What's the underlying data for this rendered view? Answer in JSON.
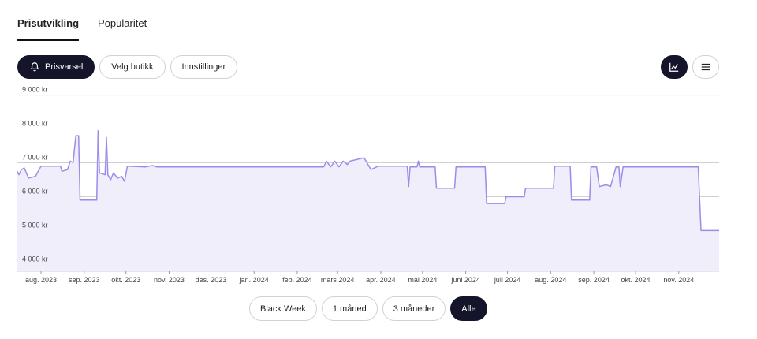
{
  "tabs": [
    {
      "label": "Prisutvikling",
      "active": true
    },
    {
      "label": "Popularitet",
      "active": false
    }
  ],
  "toolbar": {
    "alert_label": "Prisvarsel",
    "store_label": "Velg butikk",
    "settings_label": "Innstillinger"
  },
  "view": {
    "chart_icon": "line-chart-icon",
    "list_icon": "list-icon",
    "active": "chart"
  },
  "ranges": [
    {
      "label": "Black Week",
      "active": false
    },
    {
      "label": "1 måned",
      "active": false
    },
    {
      "label": "3 måneder",
      "active": false
    },
    {
      "label": "Alle",
      "active": true
    }
  ],
  "colors": {
    "line": "#9a8ce8",
    "fill": "#f1eefc",
    "dark": "#14142a",
    "grid": "#cfcfd6"
  },
  "chart_data": {
    "type": "line",
    "title": "",
    "xlabel": "",
    "ylabel": "",
    "ylim": [
      3800,
      9200
    ],
    "x_range": [
      "2023-07-15",
      "2024-11-30"
    ],
    "y_ticks": [
      {
        "value": 4000,
        "label": "4 000 kr"
      },
      {
        "value": 5000,
        "label": "5 000 kr"
      },
      {
        "value": 6000,
        "label": "6 000 kr"
      },
      {
        "value": 7000,
        "label": "7 000 kr"
      },
      {
        "value": 8000,
        "label": "8 000 kr"
      },
      {
        "value": 9000,
        "label": "9 000 kr"
      }
    ],
    "x_ticks": [
      {
        "date": "2023-08-01",
        "label": "aug. 2023"
      },
      {
        "date": "2023-09-01",
        "label": "sep. 2023"
      },
      {
        "date": "2023-10-01",
        "label": "okt. 2023"
      },
      {
        "date": "2023-11-01",
        "label": "nov. 2023"
      },
      {
        "date": "2023-12-01",
        "label": "des. 2023"
      },
      {
        "date": "2024-01-01",
        "label": "jan. 2024"
      },
      {
        "date": "2024-02-01",
        "label": "feb. 2024"
      },
      {
        "date": "2024-03-01",
        "label": "mars 2024"
      },
      {
        "date": "2024-04-01",
        "label": "apr. 2024"
      },
      {
        "date": "2024-05-01",
        "label": "mai 2024"
      },
      {
        "date": "2024-06-01",
        "label": "juni 2024"
      },
      {
        "date": "2024-07-01",
        "label": "juli 2024"
      },
      {
        "date": "2024-08-01",
        "label": "aug. 2024"
      },
      {
        "date": "2024-09-01",
        "label": "sep. 2024"
      },
      {
        "date": "2024-10-01",
        "label": "okt. 2024"
      },
      {
        "date": "2024-11-01",
        "label": "nov. 2024"
      }
    ],
    "grid": true,
    "series": [
      {
        "values": [
          [
            "2023-07-15",
            6750
          ],
          [
            "2023-07-16",
            6650
          ],
          [
            "2023-07-18",
            6800
          ],
          [
            "2023-07-20",
            6850
          ],
          [
            "2023-07-23",
            6550
          ],
          [
            "2023-07-28",
            6600
          ],
          [
            "2023-08-01",
            6900
          ],
          [
            "2023-08-15",
            6900
          ],
          [
            "2023-08-16",
            6750
          ],
          [
            "2023-08-20",
            6800
          ],
          [
            "2023-08-22",
            7050
          ],
          [
            "2023-08-24",
            7000
          ],
          [
            "2023-08-26",
            7800
          ],
          [
            "2023-08-28",
            7800
          ],
          [
            "2023-08-29",
            5900
          ],
          [
            "2023-09-10",
            5900
          ],
          [
            "2023-09-11",
            7950
          ],
          [
            "2023-09-12",
            6700
          ],
          [
            "2023-09-16",
            6650
          ],
          [
            "2023-09-17",
            7750
          ],
          [
            "2023-09-18",
            6650
          ],
          [
            "2023-09-20",
            6500
          ],
          [
            "2023-09-22",
            6700
          ],
          [
            "2023-09-25",
            6550
          ],
          [
            "2023-09-28",
            6600
          ],
          [
            "2023-09-30",
            6450
          ],
          [
            "2023-10-02",
            6900
          ],
          [
            "2023-10-15",
            6880
          ],
          [
            "2023-10-20",
            6920
          ],
          [
            "2023-10-23",
            6880
          ],
          [
            "2024-02-20",
            6880
          ],
          [
            "2024-02-22",
            7050
          ],
          [
            "2024-02-25",
            6880
          ],
          [
            "2024-02-28",
            7050
          ],
          [
            "2024-03-02",
            6880
          ],
          [
            "2024-03-05",
            7050
          ],
          [
            "2024-03-08",
            6950
          ],
          [
            "2024-03-10",
            7050
          ],
          [
            "2024-03-15",
            7100
          ],
          [
            "2024-03-20",
            7150
          ],
          [
            "2024-03-25",
            6800
          ],
          [
            "2024-03-30",
            6900
          ],
          [
            "2024-04-20",
            6900
          ],
          [
            "2024-04-21",
            6300
          ],
          [
            "2024-04-22",
            6880
          ],
          [
            "2024-04-27",
            6880
          ],
          [
            "2024-04-28",
            7050
          ],
          [
            "2024-04-29",
            6880
          ],
          [
            "2024-05-10",
            6880
          ],
          [
            "2024-05-11",
            6250
          ],
          [
            "2024-05-24",
            6250
          ],
          [
            "2024-05-25",
            6880
          ],
          [
            "2024-06-15",
            6880
          ],
          [
            "2024-06-16",
            5800
          ],
          [
            "2024-06-29",
            5800
          ],
          [
            "2024-06-30",
            6000
          ],
          [
            "2024-07-13",
            6000
          ],
          [
            "2024-07-14",
            6250
          ],
          [
            "2024-08-03",
            6250
          ],
          [
            "2024-08-04",
            6900
          ],
          [
            "2024-08-15",
            6900
          ],
          [
            "2024-08-16",
            5900
          ],
          [
            "2024-08-29",
            5900
          ],
          [
            "2024-08-30",
            6880
          ],
          [
            "2024-09-03",
            6880
          ],
          [
            "2024-09-05",
            6300
          ],
          [
            "2024-09-10",
            6350
          ],
          [
            "2024-09-13",
            6300
          ],
          [
            "2024-09-17",
            6880
          ],
          [
            "2024-09-19",
            6880
          ],
          [
            "2024-09-20",
            6300
          ],
          [
            "2024-09-22",
            6880
          ],
          [
            "2024-11-15",
            6880
          ],
          [
            "2024-11-17",
            5000
          ],
          [
            "2024-11-30",
            5000
          ]
        ]
      }
    ]
  }
}
